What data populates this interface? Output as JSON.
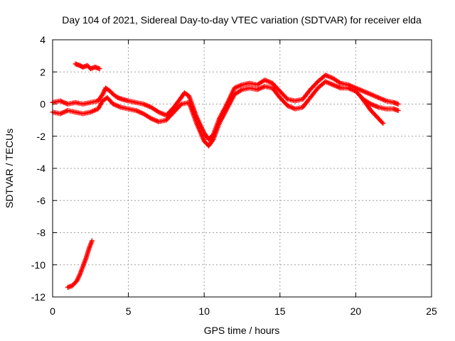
{
  "chart_data": {
    "type": "scatter",
    "title": "Day 104 of 2021, Sidereal Day-to-day VTEC variation (SDTVAR) for receiver elda",
    "xlabel": "GPS time / hours",
    "ylabel": "SDTVAR / TECUs",
    "xlim": [
      0,
      25
    ],
    "ylim": [
      -12,
      4
    ],
    "xticks": [
      0,
      5,
      10,
      15,
      20,
      25
    ],
    "yticks": [
      -12,
      -10,
      -8,
      -6,
      -4,
      -2,
      0,
      2,
      4
    ],
    "grid": true,
    "marker": "+",
    "color": "#ff0000",
    "series": [
      {
        "name": "trace-upper-main",
        "x": [
          0.0,
          0.5,
          1.0,
          1.5,
          2.0,
          2.5,
          3.0,
          3.3,
          3.5,
          3.8,
          4.0,
          4.3,
          4.6,
          5.0,
          5.5,
          6.0,
          6.5,
          7.0,
          7.5,
          8.0,
          8.4,
          8.7,
          9.0,
          9.5,
          10.0,
          10.3,
          10.6,
          11.0,
          11.5,
          12.0,
          12.5,
          13.0,
          13.5,
          14.0,
          14.5,
          15.0,
          15.5,
          16.0,
          16.5,
          17.0,
          17.5,
          18.0,
          18.5,
          19.0,
          19.5,
          20.0,
          20.5,
          21.0,
          21.5,
          22.0,
          22.5,
          22.8
        ],
        "y": [
          0.1,
          0.2,
          0.0,
          0.1,
          0.0,
          0.1,
          0.2,
          0.6,
          1.0,
          0.8,
          0.6,
          0.4,
          0.3,
          0.2,
          0.1,
          0.0,
          -0.2,
          -0.5,
          -0.7,
          -0.2,
          0.3,
          0.7,
          0.5,
          -0.8,
          -1.8,
          -2.2,
          -1.9,
          -0.9,
          0.0,
          1.0,
          1.2,
          1.3,
          1.2,
          1.5,
          1.3,
          0.8,
          0.3,
          0.2,
          0.3,
          0.9,
          1.4,
          1.8,
          1.6,
          1.3,
          1.2,
          1.0,
          0.8,
          0.6,
          0.4,
          0.2,
          0.1,
          0.0
        ]
      },
      {
        "name": "trace-lower-main",
        "x": [
          0.0,
          0.5,
          1.0,
          1.5,
          2.0,
          2.5,
          3.0,
          3.3,
          3.6,
          4.0,
          4.5,
          5.0,
          5.5,
          6.0,
          6.5,
          7.0,
          7.5,
          8.0,
          8.5,
          9.0,
          9.5,
          10.0,
          10.3,
          10.6,
          11.0,
          11.5,
          12.0,
          12.5,
          13.0,
          13.5,
          14.0,
          14.5,
          15.0,
          15.5,
          16.0,
          16.5,
          17.0,
          17.5,
          18.0,
          18.5,
          19.0,
          19.5,
          20.0,
          20.5,
          21.0,
          21.5,
          22.0,
          22.5,
          22.8
        ],
        "y": [
          -0.5,
          -0.6,
          -0.4,
          -0.5,
          -0.6,
          -0.5,
          -0.3,
          0.2,
          0.4,
          0.0,
          -0.2,
          -0.3,
          -0.4,
          -0.6,
          -0.9,
          -1.1,
          -1.0,
          -0.5,
          0.0,
          0.1,
          -1.2,
          -2.3,
          -2.6,
          -2.2,
          -1.2,
          -0.3,
          0.6,
          0.9,
          1.0,
          0.9,
          1.1,
          1.0,
          0.4,
          -0.1,
          -0.3,
          -0.2,
          0.4,
          1.0,
          1.4,
          1.2,
          1.0,
          1.0,
          0.8,
          0.3,
          0.0,
          -0.2,
          -0.3,
          -0.3,
          -0.4
        ]
      },
      {
        "name": "trace-upper-left-segment",
        "x": [
          1.5,
          1.8,
          2.0,
          2.3,
          2.5,
          2.8,
          3.1
        ],
        "y": [
          2.5,
          2.4,
          2.3,
          2.4,
          2.2,
          2.3,
          2.2
        ]
      },
      {
        "name": "trace-steep-segment",
        "x": [
          1.0,
          1.3,
          1.6,
          1.8,
          2.0,
          2.2,
          2.4,
          2.6
        ],
        "y": [
          -11.4,
          -11.3,
          -11.0,
          -10.6,
          -10.1,
          -9.6,
          -9.0,
          -8.5
        ]
      },
      {
        "name": "trace-late-decline",
        "x": [
          20.3,
          20.7,
          21.0,
          21.3,
          21.6,
          21.8
        ],
        "y": [
          0.5,
          0.0,
          -0.4,
          -0.7,
          -1.0,
          -1.2
        ]
      }
    ]
  }
}
